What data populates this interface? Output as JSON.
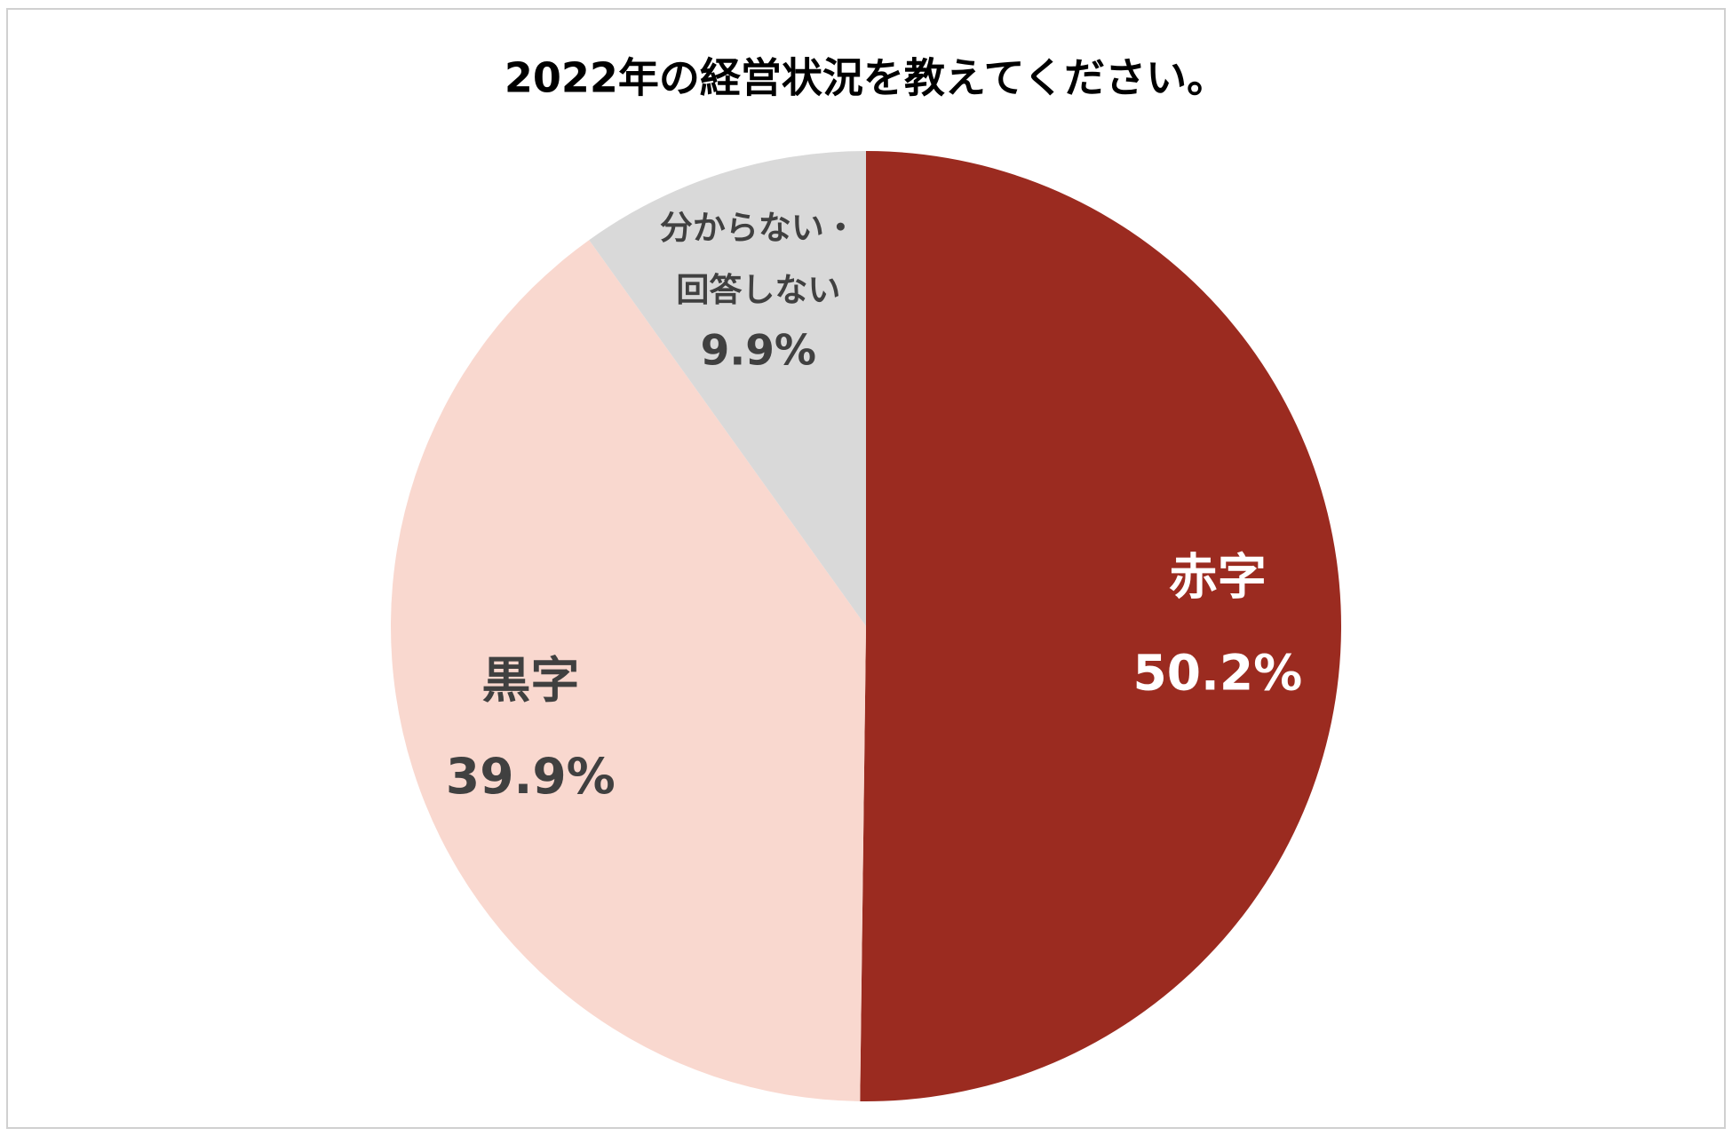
{
  "chart_data": {
    "type": "pie",
    "title": "2022年の経営状況を教えてください。",
    "categories": [
      "赤字",
      "黒字",
      "分からない・\n回答しない"
    ],
    "values": [
      50.2,
      39.9,
      9.9
    ],
    "value_labels": [
      "50.2%",
      "39.9%",
      "9.9%"
    ],
    "colors": [
      "#9b2b20",
      "#f9d8cf",
      "#d9d9d9"
    ]
  }
}
